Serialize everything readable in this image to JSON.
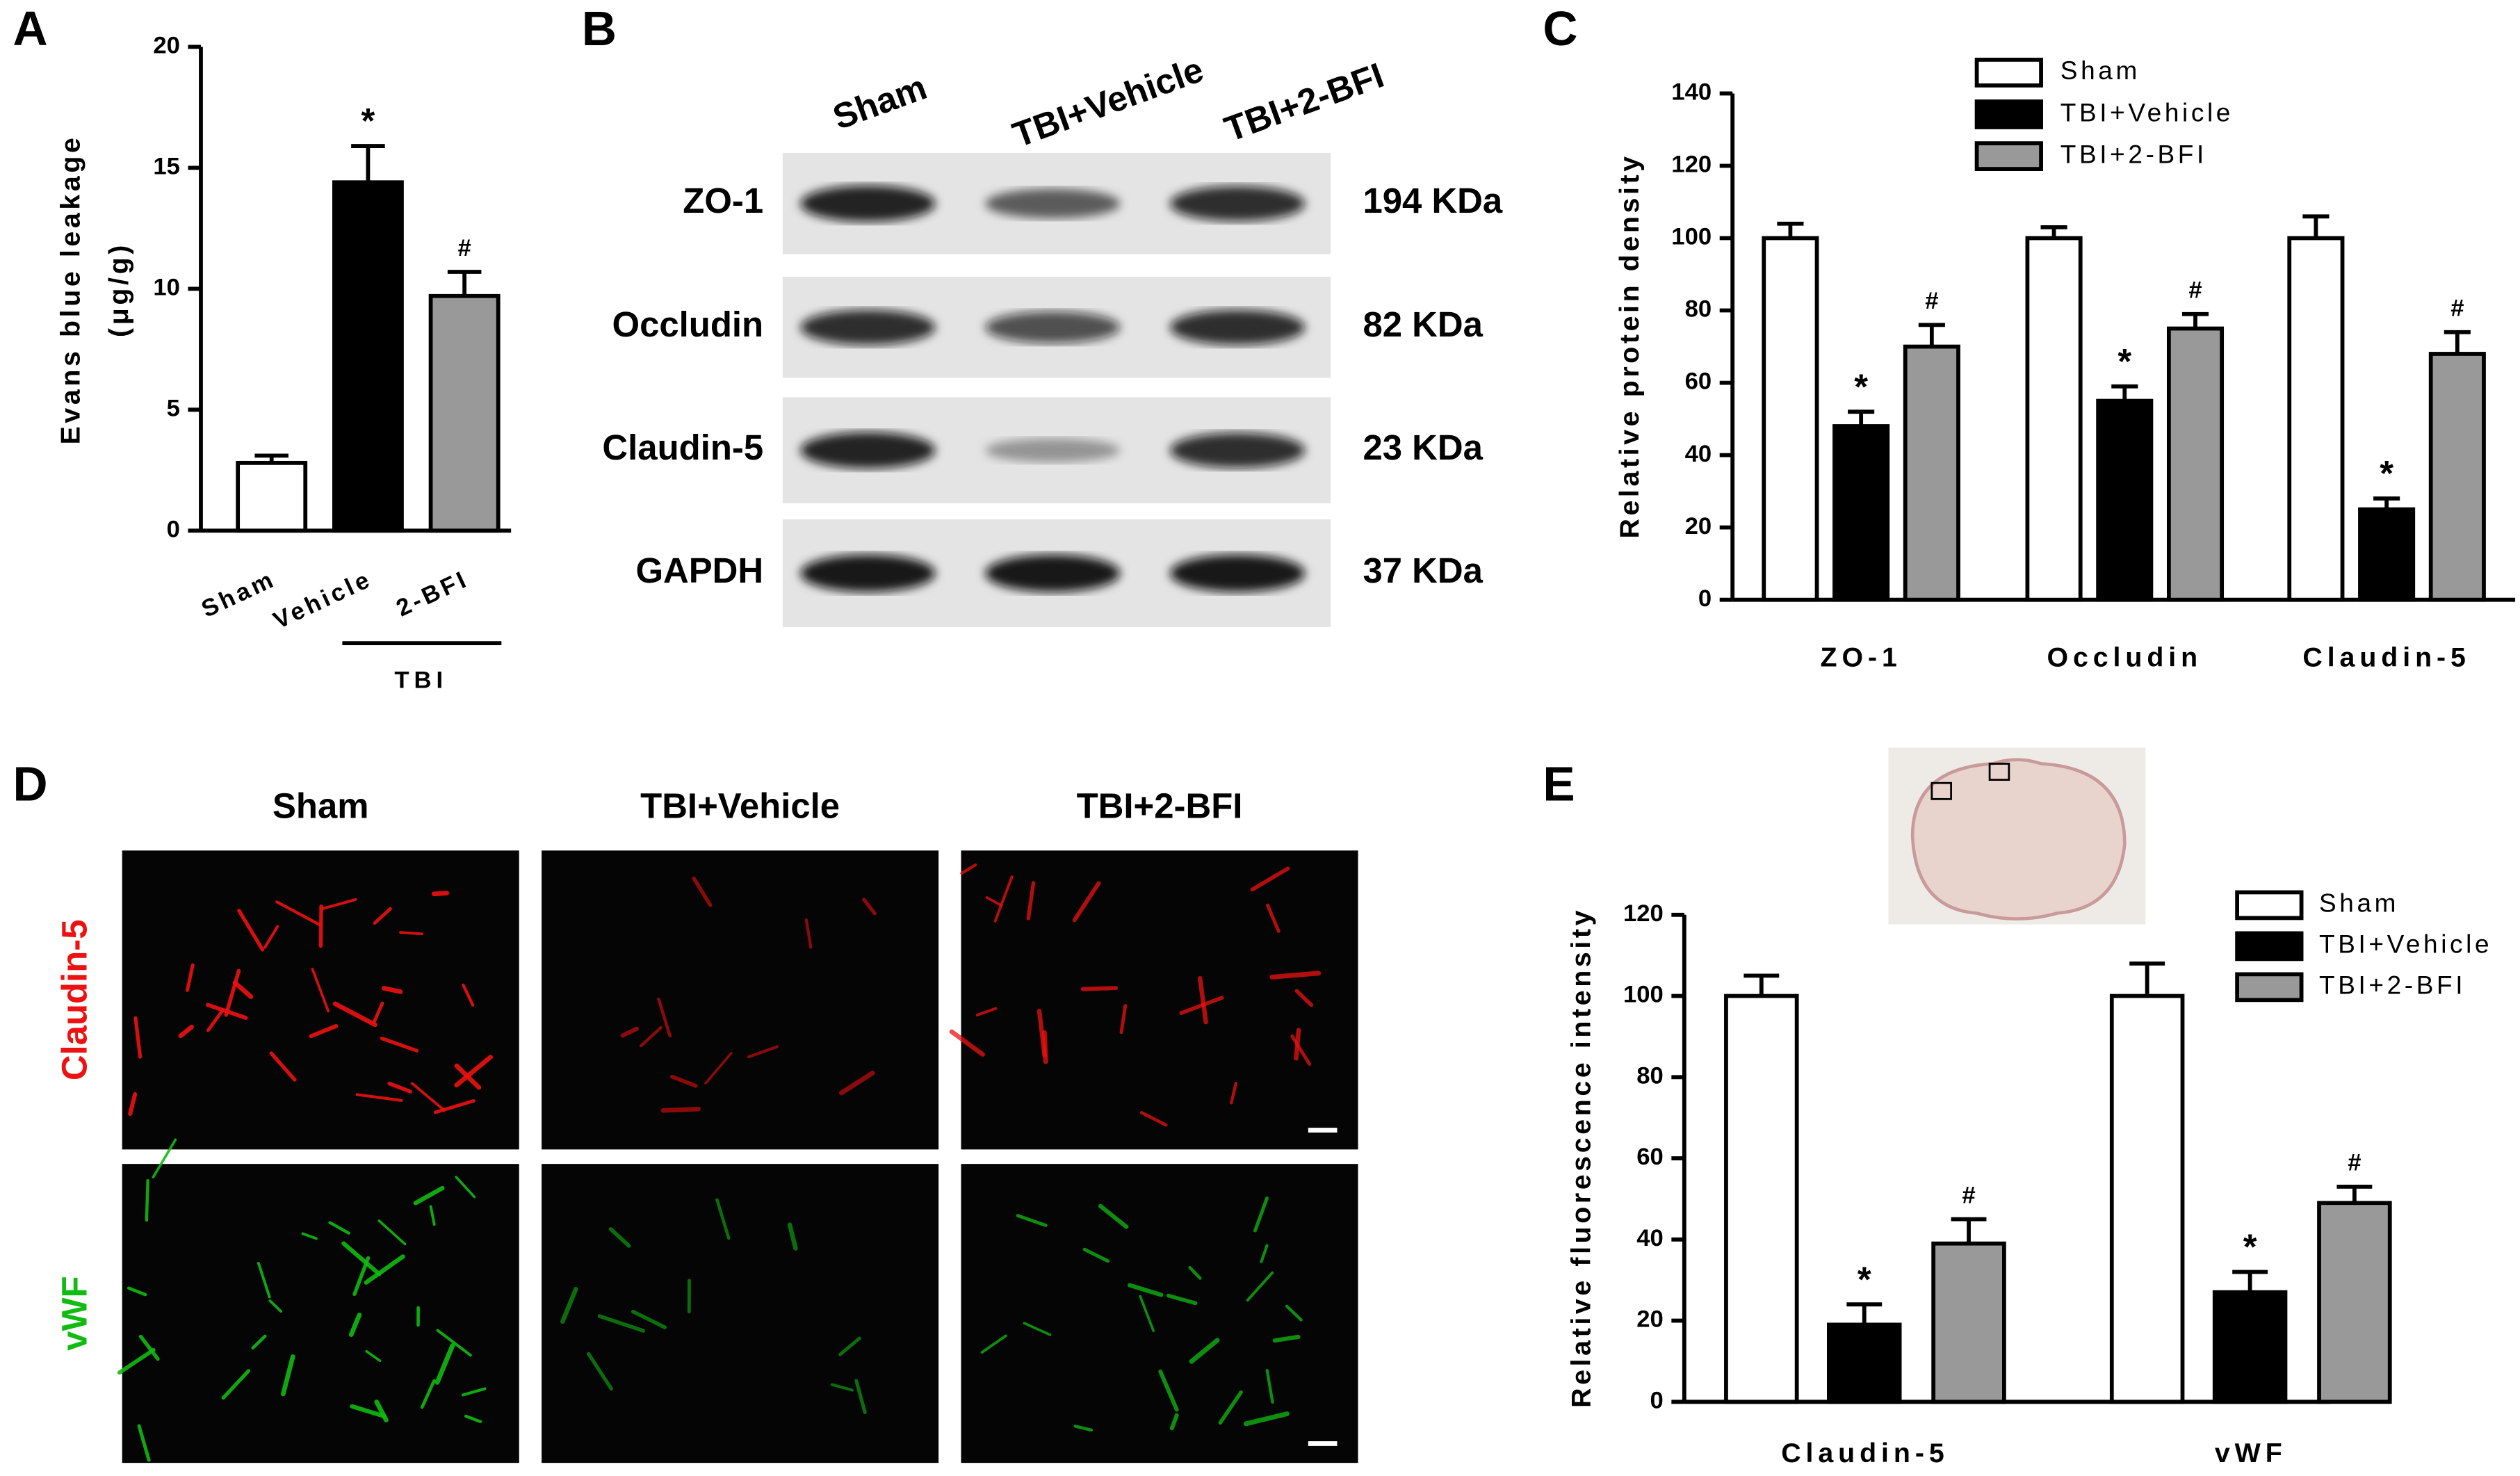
{
  "chart_data": [
    {
      "type": "bar",
      "panel": "A",
      "ylabel": [
        "Evans blue leakage",
        "(μg/g)"
      ],
      "categories": [
        "Sham",
        "Vehicle",
        "2-BFI"
      ],
      "group_label": "TBI",
      "values": [
        2.8,
        14.4,
        9.7
      ],
      "errors": [
        0.3,
        1.5,
        1.0
      ],
      "colors": [
        "#ffffff",
        "#000000",
        "#999999"
      ],
      "markers": [
        null,
        "*",
        "#"
      ],
      "ylim": [
        0,
        20
      ],
      "yticks": [
        0,
        5,
        10,
        15,
        20
      ]
    },
    {
      "type": "bar",
      "panel": "C",
      "ylabel": [
        "Relative protein density"
      ],
      "categories": [
        "ZO-1",
        "Occludin",
        "Claudin-5"
      ],
      "series": [
        {
          "name": "Sham",
          "color": "#ffffff",
          "values": [
            100,
            100,
            100
          ],
          "errors": [
            4,
            3,
            6
          ]
        },
        {
          "name": "TBI+Vehicle",
          "color": "#000000",
          "values": [
            48,
            55,
            25
          ],
          "errors": [
            4,
            4,
            3
          ],
          "marker": "*"
        },
        {
          "name": "TBI+2-BFI",
          "color": "#999999",
          "values": [
            70,
            75,
            68
          ],
          "errors": [
            6,
            4,
            6
          ],
          "marker": "#"
        }
      ],
      "ylim": [
        0,
        140
      ],
      "yticks": [
        0,
        20,
        40,
        60,
        80,
        100,
        120,
        140
      ]
    },
    {
      "type": "bar",
      "panel": "E",
      "ylabel": [
        "Relative fluorescence intensity"
      ],
      "categories": [
        "Claudin-5",
        "vWF"
      ],
      "series": [
        {
          "name": "Sham",
          "color": "#ffffff",
          "values": [
            100,
            100
          ],
          "errors": [
            5,
            8
          ]
        },
        {
          "name": "TBI+Vehicle",
          "color": "#000000",
          "values": [
            19,
            27
          ],
          "errors": [
            5,
            5
          ],
          "marker": "*"
        },
        {
          "name": "TBI+2-BFI",
          "color": "#999999",
          "values": [
            39,
            49
          ],
          "errors": [
            6,
            4
          ],
          "marker": "#"
        }
      ],
      "ylim": [
        0,
        120
      ],
      "yticks": [
        0,
        20,
        40,
        60,
        80,
        100,
        120
      ]
    }
  ],
  "blot": {
    "panel": "B",
    "lanes": [
      "Sham",
      "TBI+Vehicle",
      "TBI+2-BFI"
    ],
    "rows": [
      {
        "protein": "ZO-1",
        "size": "194 KDa"
      },
      {
        "protein": "Occludin",
        "size": "82 KDa"
      },
      {
        "protein": "Claudin-5",
        "size": "23 KDa"
      },
      {
        "protein": "GAPDH",
        "size": "37 KDa"
      }
    ]
  },
  "micrographs": {
    "panel": "D",
    "columns": [
      "Sham",
      "TBI+Vehicle",
      "TBI+2-BFI"
    ],
    "rows": [
      {
        "label": "Claudin-5",
        "color": "#ee1111"
      },
      {
        "label": "vWF",
        "color": "#11bb11"
      }
    ]
  }
}
